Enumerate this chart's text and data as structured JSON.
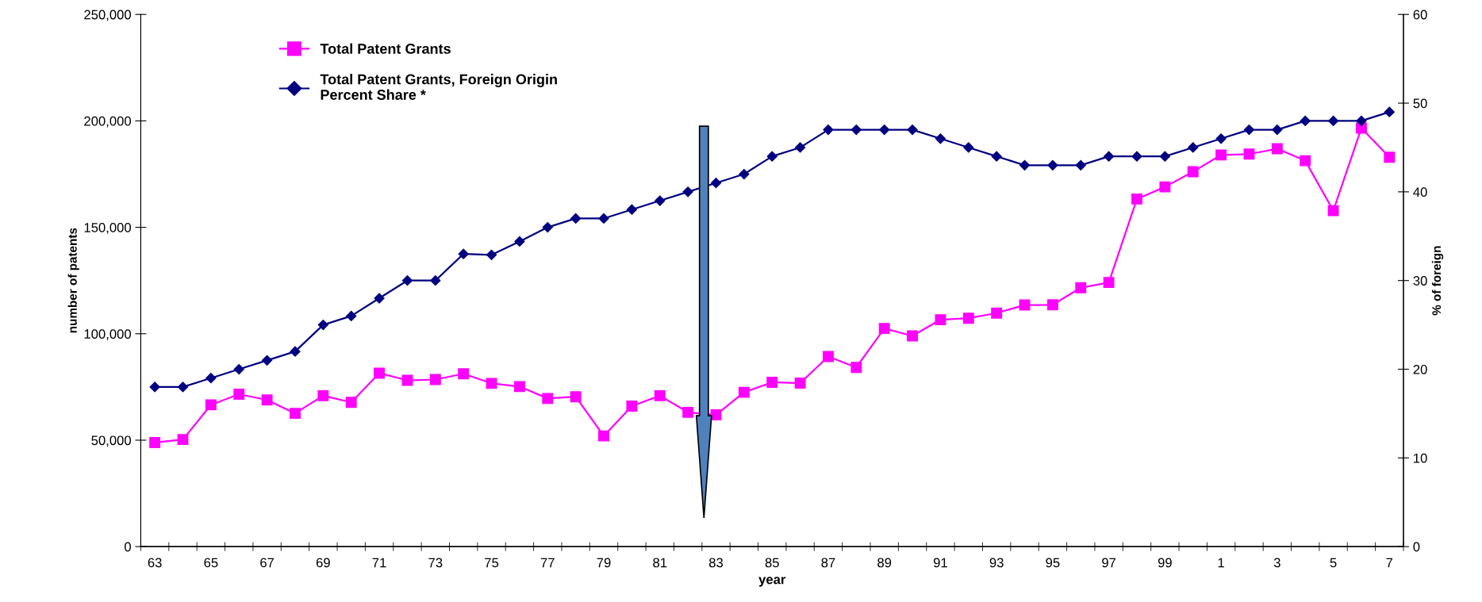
{
  "chart_data": {
    "type": "line",
    "xlabel": "year",
    "ylabel": "number of patents",
    "y2label": "% of foreign",
    "categories": [
      "63",
      null,
      "65",
      null,
      "67",
      null,
      "69",
      null,
      "71",
      null,
      "73",
      null,
      "75",
      null,
      "77",
      null,
      "79",
      null,
      "81",
      null,
      "83",
      null,
      "85",
      null,
      "87",
      null,
      "89",
      null,
      "91",
      null,
      "93",
      null,
      "95",
      null,
      "97",
      null,
      "99",
      null,
      "1",
      null,
      "3",
      null,
      "5",
      null,
      "7"
    ],
    "series": [
      {
        "name": "Total Patent Grants",
        "color": "#ff00ff",
        "marker": "square",
        "values": [
          48900,
          50300,
          66600,
          71600,
          68900,
          62600,
          70900,
          67800,
          81500,
          78100,
          78500,
          81200,
          76700,
          75200,
          69600,
          70400,
          52000,
          66000,
          70900,
          63100,
          61900,
          72500,
          77200,
          76800,
          89300,
          84200,
          102500,
          99000,
          106600,
          107300,
          109700,
          113500,
          113600,
          121600,
          124100,
          163300,
          169000,
          176100,
          184000,
          184400,
          186900,
          181300,
          157800,
          196600,
          182900
        ]
      },
      {
        "name": "Total Patent Grants, Foreign Origin\nPercent Share *",
        "color": "#000080",
        "marker": "diamond",
        "axis": "y2",
        "values": [
          18,
          18,
          19,
          20,
          21,
          22,
          25,
          26,
          28,
          30,
          30,
          33,
          32.9,
          34.4,
          36,
          37,
          37,
          38,
          39,
          40,
          41,
          42,
          44,
          45,
          47,
          47,
          47,
          47,
          46,
          45,
          44,
          43,
          43,
          43,
          44,
          44,
          44,
          45,
          46,
          47,
          47,
          48,
          48,
          48,
          49
        ]
      }
    ],
    "ylim": [
      0,
      250000
    ],
    "yticks": [
      {
        "value": 0,
        "label": "0"
      },
      {
        "value": 50000,
        "label": "50,000"
      },
      {
        "value": 100000,
        "label": "100,000"
      },
      {
        "value": 150000,
        "label": "150,000"
      },
      {
        "value": 200000,
        "label": "200,000"
      },
      {
        "value": 250000,
        "label": "250,000"
      }
    ],
    "y2lim": [
      0,
      60
    ],
    "y2ticks": [
      0,
      10,
      20,
      30,
      40,
      50,
      60
    ],
    "grid": false,
    "legend": "top left",
    "line_style": "solid"
  }
}
